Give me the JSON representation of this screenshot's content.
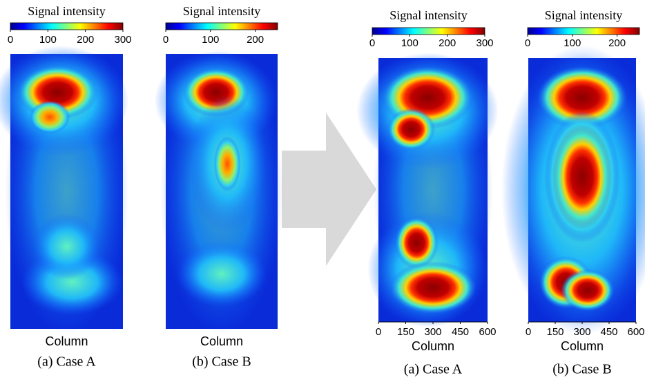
{
  "panels": [
    {
      "colorbar_title": "Signal intensity",
      "colorbar_lim": [
        0,
        300
      ],
      "colorbar_ticks": [
        0,
        100,
        200,
        300
      ],
      "x_label": "Column",
      "caption": "(a) Case A"
    },
    {
      "colorbar_title": "Signal intensity",
      "colorbar_lim": [
        0,
        250
      ],
      "colorbar_ticks": [
        0,
        100,
        200
      ],
      "x_label": "Column",
      "caption": "(b) Case B"
    },
    {
      "colorbar_title": "Signal intensity",
      "colorbar_lim": [
        0,
        300
      ],
      "colorbar_ticks": [
        0,
        100,
        200,
        300
      ],
      "xlim": [
        0,
        600
      ],
      "xticks": [
        0,
        150,
        300,
        450,
        600
      ],
      "x_label": "Column",
      "caption": "(a) Case A"
    },
    {
      "colorbar_title": "Signal intensity",
      "colorbar_lim": [
        0,
        250
      ],
      "colorbar_ticks": [
        0,
        100,
        200
      ],
      "xlim": [
        0,
        600
      ],
      "xticks": [
        0,
        150,
        300,
        450,
        600
      ],
      "x_label": "Column",
      "caption": "(b) Case B"
    }
  ]
}
